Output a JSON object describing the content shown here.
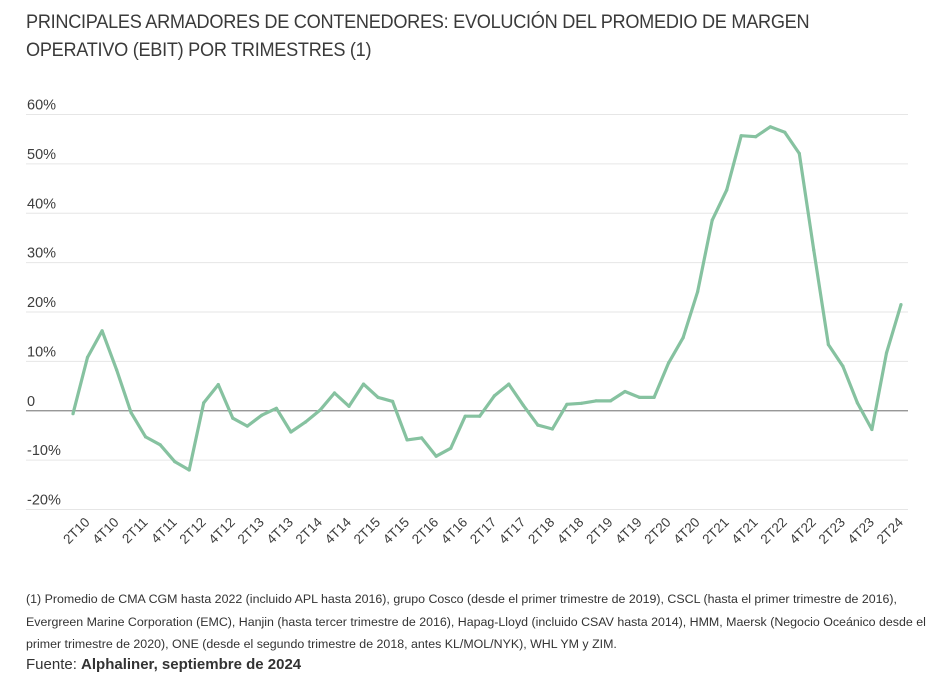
{
  "chart_data": {
    "type": "line",
    "title": "PRINCIPALES ARMADORES DE CONTENEDORES: EVOLUCIÓN DEL PROMEDIO  DE MARGEN OPERATIVO (EBIT) POR TRIMESTRES (1)",
    "xlabel": "",
    "ylabel": "",
    "ylim": [
      -20,
      60
    ],
    "y_ticks": [
      -20,
      -10,
      0,
      10,
      20,
      30,
      40,
      50,
      60
    ],
    "y_tick_labels": [
      "-20%",
      "-10%",
      "0",
      "10%",
      "20%",
      "30%",
      "40%",
      "50%",
      "60%"
    ],
    "grid": true,
    "legend": "none",
    "x": [
      "1T10",
      "2T10",
      "3T10",
      "4T10",
      "1T11",
      "2T11",
      "3T11",
      "4T11",
      "1T12",
      "2T12",
      "3T12",
      "4T12",
      "1T13",
      "2T13",
      "3T13",
      "4T13",
      "1T14",
      "2T14",
      "3T14",
      "4T14",
      "1T15",
      "2T15",
      "3T15",
      "4T15",
      "1T16",
      "2T16",
      "3T16",
      "4T16",
      "1T17",
      "2T17",
      "3T17",
      "4T17",
      "1T18",
      "2T18",
      "3T18",
      "4T18",
      "1T19",
      "2T19",
      "3T19",
      "4T19",
      "1T20",
      "2T20",
      "3T20",
      "4T20",
      "1T21",
      "2T21",
      "3T21",
      "4T21",
      "1T22",
      "2T22",
      "3T22",
      "4T22",
      "1T23",
      "2T23",
      "3T23",
      "4T23",
      "1T24",
      "2T24"
    ],
    "x_tick_labels": [
      "2T10",
      "4T10",
      "2T11",
      "4T11",
      "2T12",
      "4T12",
      "2T13",
      "4T13",
      "2T14",
      "4T14",
      "2T15",
      "4T15",
      "2T16",
      "4T16",
      "2T17",
      "4T17",
      "2T18",
      "4T18",
      "2T19",
      "4T19",
      "2T20",
      "4T20",
      "2T21",
      "4T21",
      "2T22",
      "4T22",
      "2T23",
      "4T23",
      "2T24"
    ],
    "series": [
      {
        "name": "Margen operativo (EBIT) promedio",
        "color": "#86c2a0",
        "values": [
          -0.6,
          10.8,
          16.2,
          8.3,
          -0.4,
          -5.3,
          -6.9,
          -10.3,
          -12.0,
          1.6,
          5.3,
          -1.5,
          -3.1,
          -0.9,
          0.5,
          -4.3,
          -2.3,
          0.1,
          3.6,
          0.9,
          5.4,
          2.7,
          1.9,
          -5.9,
          -5.5,
          -9.2,
          -7.6,
          -1.1,
          -1.1,
          3.0,
          5.4,
          1.1,
          -2.9,
          -3.7,
          1.3,
          1.5,
          2.0,
          2.0,
          3.9,
          2.7,
          2.7,
          9.7,
          14.8,
          24.1,
          38.6,
          44.7,
          55.7,
          55.5,
          57.5,
          56.4,
          52.1,
          32.5,
          13.4,
          9.0,
          1.6,
          -3.8,
          11.7,
          21.5
        ]
      }
    ]
  },
  "footnote": "(1) Promedio de CMA CGM hasta 2022 (incluido APL hasta 2016), grupo Cosco  (desde el primer trimestre de 2019), CSCL (hasta el primer trimestre de 2016), Evergreen Marine Corporation (EMC), Hanjin (hasta tercer trimestre de 2016), Hapag-Lloyd (incluido CSAV hasta 2014), HMM, Maersk (Negocio Oceánico desde el primer trimestre de 2020), ONE (desde el segundo trimestre de 2018, antes KL/MOL/NYK), WHL YM y ZIM.",
  "source": {
    "label": "Fuente: ",
    "value": "Alphaliner, septiembre de 2024"
  },
  "colors": {
    "line": "#86c2a0",
    "grid": "#e6e6e6",
    "zero_line": "#8a8a8a",
    "text": "#3d3d3d"
  }
}
